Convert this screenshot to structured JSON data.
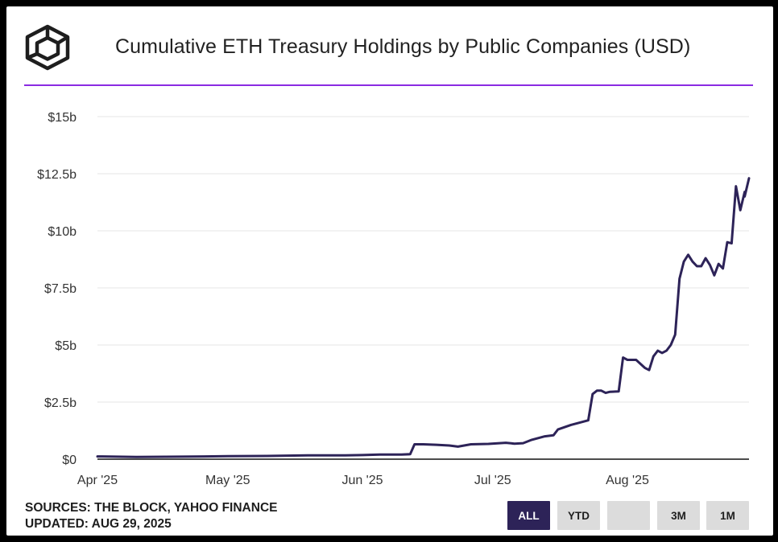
{
  "chart_data": {
    "type": "line",
    "title": "Cumulative ETH Treasury Holdings by Public Companies (USD)",
    "xlabel": "",
    "ylabel": "",
    "x_ticks": [
      "Apr '25",
      "May '25",
      "Jun '25",
      "Jul '25",
      "Aug '25"
    ],
    "y_ticks": [
      "$0",
      "$2.5b",
      "$5b",
      "$7.5b",
      "$10b",
      "$12.5b",
      "$15b"
    ],
    "ylim": [
      0,
      15
    ],
    "xlim": [
      "2025-04-01",
      "2025-08-29"
    ],
    "grid": true,
    "series": [
      {
        "color": "#2d2358",
        "points": [
          [
            "2025-04-01",
            0.12
          ],
          [
            "2025-04-10",
            0.1
          ],
          [
            "2025-04-20",
            0.11
          ],
          [
            "2025-05-01",
            0.13
          ],
          [
            "2025-05-10",
            0.14
          ],
          [
            "2025-05-20",
            0.17
          ],
          [
            "2025-05-28",
            0.17
          ],
          [
            "2025-06-01",
            0.18
          ],
          [
            "2025-06-05",
            0.2
          ],
          [
            "2025-06-10",
            0.2
          ],
          [
            "2025-06-12",
            0.22
          ],
          [
            "2025-06-13",
            0.65
          ],
          [
            "2025-06-15",
            0.65
          ],
          [
            "2025-06-18",
            0.63
          ],
          [
            "2025-06-21",
            0.6
          ],
          [
            "2025-06-23",
            0.55
          ],
          [
            "2025-06-26",
            0.65
          ],
          [
            "2025-06-30",
            0.67
          ],
          [
            "2025-07-04",
            0.72
          ],
          [
            "2025-07-06",
            0.68
          ],
          [
            "2025-07-08",
            0.7
          ],
          [
            "2025-07-10",
            0.85
          ],
          [
            "2025-07-13",
            1.0
          ],
          [
            "2025-07-15",
            1.05
          ],
          [
            "2025-07-16",
            1.3
          ],
          [
            "2025-07-19",
            1.5
          ],
          [
            "2025-07-21",
            1.6
          ],
          [
            "2025-07-23",
            1.7
          ],
          [
            "2025-07-24",
            2.85
          ],
          [
            "2025-07-25",
            3.0
          ],
          [
            "2025-07-26",
            3.0
          ],
          [
            "2025-07-27",
            2.9
          ],
          [
            "2025-07-28",
            2.95
          ],
          [
            "2025-07-30",
            2.97
          ],
          [
            "2025-07-31",
            4.45
          ],
          [
            "2025-08-01",
            4.35
          ],
          [
            "2025-08-03",
            4.35
          ],
          [
            "2025-08-05",
            4.0
          ],
          [
            "2025-08-06",
            3.9
          ],
          [
            "2025-08-07",
            4.5
          ],
          [
            "2025-08-08",
            4.75
          ],
          [
            "2025-08-09",
            4.65
          ],
          [
            "2025-08-10",
            4.75
          ],
          [
            "2025-08-11",
            5.0
          ],
          [
            "2025-08-12",
            5.45
          ],
          [
            "2025-08-13",
            7.9
          ],
          [
            "2025-08-14",
            8.65
          ],
          [
            "2025-08-15",
            8.95
          ],
          [
            "2025-08-16",
            8.65
          ],
          [
            "2025-08-17",
            8.45
          ],
          [
            "2025-08-18",
            8.45
          ],
          [
            "2025-08-19",
            8.8
          ],
          [
            "2025-08-20",
            8.5
          ],
          [
            "2025-08-21",
            8.05
          ],
          [
            "2025-08-22",
            8.55
          ],
          [
            "2025-08-23",
            8.35
          ],
          [
            "2025-08-24",
            9.5
          ],
          [
            "2025-08-25",
            9.45
          ],
          [
            "2025-08-26",
            11.95
          ],
          [
            "2025-08-27",
            10.9
          ],
          [
            "2025-08-28",
            11.7
          ],
          [
            "2025-08-28",
            11.5
          ],
          [
            "2025-08-29",
            12.3
          ]
        ]
      }
    ]
  },
  "footer": {
    "sources": "SOURCES: THE BLOCK, YAHOO FINANCE",
    "updated": "UPDATED: AUG 29, 2025"
  },
  "range_buttons": [
    "ALL",
    "YTD",
    "",
    "3M",
    "1M"
  ],
  "active_range": "ALL",
  "colors": {
    "accent_rule": "#8a2be2",
    "line": "#2d2358",
    "button_active": "#2d2358",
    "button": "#dcdcdc"
  },
  "logo_icon": "the-block-cube-logo-icon"
}
